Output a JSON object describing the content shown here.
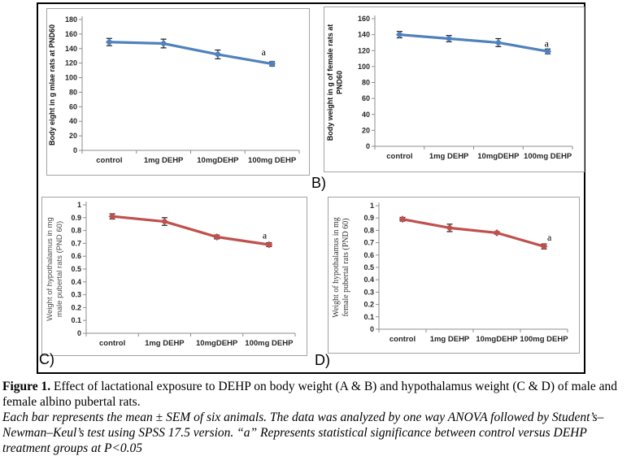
{
  "figure": {
    "panel_letters": {
      "b": "B)",
      "c": "C)",
      "d": "D)"
    }
  },
  "caption": {
    "bold_prefix": "Figure 1.",
    "main_text": " Effect of lactational exposure to DEHP on body weight (A & B) and hypothalamus weight (C & D) of male and female albino pubertal rats.",
    "italic_text": "Each bar represents the mean ± SEM of six animals. The data was analyzed by one way ANOVA followed by Student’s–Newman–Keul’s test using SPSS 17.5 version. “a” Represents statistical significance between control versus DEHP treatment groups at P<0.05"
  },
  "chart_data": [
    {
      "id": "A",
      "type": "line",
      "title": "",
      "xlabel": "",
      "ylabel_lines": [
        "Body eight in g mlae rats at PND60"
      ],
      "categories": [
        "control",
        "1mg DEHP",
        "10mgDEHP",
        "100mg DEHP"
      ],
      "series": [
        {
          "values": [
            149,
            147,
            132,
            119
          ],
          "errors": [
            5,
            6,
            6,
            3
          ]
        }
      ],
      "ylim": [
        0,
        180
      ],
      "ystep": 20,
      "color": "#4f81bd",
      "error_bar_color": "#1a1a1a",
      "marker": "diamond",
      "grid": false,
      "legend": "none",
      "annotation": {
        "text": "a",
        "point": 3
      }
    },
    {
      "id": "B",
      "type": "line",
      "title": "",
      "xlabel": "",
      "ylabel_lines": [
        "Body weight in g of female rats at",
        "PND60"
      ],
      "categories": [
        "control",
        "1mg DEHP",
        "10mgDEHP",
        "100mg DEHP"
      ],
      "series": [
        {
          "values": [
            140,
            135,
            130,
            119
          ],
          "errors": [
            4,
            4,
            5,
            3
          ]
        }
      ],
      "ylim": [
        0,
        160
      ],
      "ystep": 20,
      "color": "#4f81bd",
      "error_bar_color": "#1a1a1a",
      "marker": "diamond",
      "grid": false,
      "legend": "none",
      "annotation": {
        "text": "a",
        "point": 3
      }
    },
    {
      "id": "C",
      "type": "line",
      "title": "",
      "xlabel": "",
      "ylabel_lines": [
        "Weight of hypothalamus in mg",
        "male pubertal rats  (PND 60)"
      ],
      "categories": [
        "control",
        "1mg DEHP",
        "10mgDEHP",
        "100mg DEHP"
      ],
      "series": [
        {
          "values": [
            0.91,
            0.87,
            0.75,
            0.69
          ],
          "errors": [
            0.02,
            0.03,
            0.015,
            0.015
          ]
        }
      ],
      "ylim": [
        0,
        1
      ],
      "ystep": 0.1,
      "color": "#c0504d",
      "error_bar_color": "#1a1a1a",
      "marker": "diamond",
      "grid": false,
      "legend": "none",
      "annotation": {
        "text": "a",
        "point": 3
      }
    },
    {
      "id": "D",
      "type": "line",
      "title": "",
      "xlabel": "",
      "ylabel_lines": [
        "Weight of hypothalamus in mg",
        "female pubertal rats (PND 60)"
      ],
      "categories": [
        "control",
        "1mg DEHP",
        "10mgDEHP",
        "100mg DEHP"
      ],
      "series": [
        {
          "values": [
            0.89,
            0.82,
            0.78,
            0.67
          ],
          "errors": [
            0.015,
            0.03,
            0.01,
            0.02
          ]
        }
      ],
      "ylim": [
        0,
        1
      ],
      "ystep": 0.1,
      "color": "#c0504d",
      "error_bar_color": "#1a1a1a",
      "marker": "diamond",
      "grid": false,
      "legend": "none",
      "annotation": {
        "text": "a",
        "point": 3
      }
    }
  ]
}
